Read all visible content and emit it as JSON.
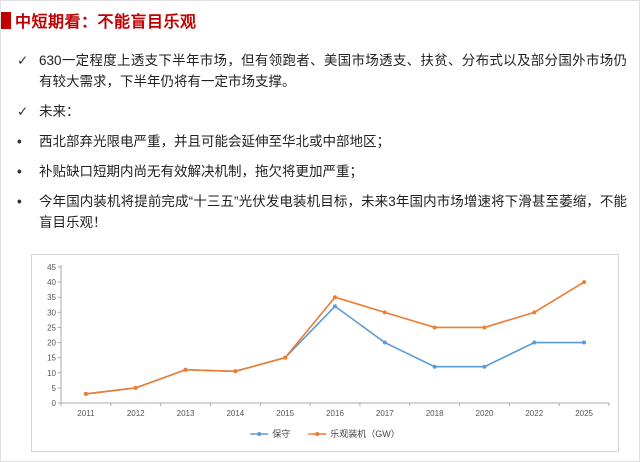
{
  "accent_color": "#c00000",
  "header": {
    "title": "中短期看：不能盲目乐观"
  },
  "bullets": [
    {
      "marker": "✓",
      "text": "630一定程度上透支下半年市场，但有领跑者、美国市场透支、扶贫、分布式以及部分国外市场仍有较大需求，下半年仍将有一定市场支撑。"
    },
    {
      "marker": "✓",
      "text": "未来："
    },
    {
      "marker": "•",
      "text": "西北部弃光限电严重，并且可能会延伸至华北或中部地区；"
    },
    {
      "marker": "•",
      "text": "补贴缺口短期内尚无有效解决机制，拖欠将更加严重；"
    },
    {
      "marker": "•",
      "text": "今年国内装机将提前完成“十三五”光伏发电装机目标，未来3年国内市场增速将下滑甚至萎缩，不能盲目乐观！"
    }
  ],
  "chart_data": {
    "type": "line",
    "categories": [
      "2011",
      "2012",
      "2013",
      "2014",
      "2015",
      "2016",
      "2017",
      "2018",
      "2020",
      "2022",
      "2025"
    ],
    "series": [
      {
        "name": "保守",
        "color": "#5b9bd5",
        "values": [
          3,
          5,
          11,
          10.5,
          15,
          32,
          20,
          12,
          12,
          20,
          20
        ]
      },
      {
        "name": "乐观装机（GW）",
        "color": "#ed7d31",
        "values": [
          3,
          5,
          11,
          10.5,
          15,
          35,
          30,
          25,
          25,
          30,
          40
        ]
      }
    ],
    "title": "",
    "xlabel": "",
    "ylabel": "",
    "ylim": [
      0,
      45
    ],
    "ytick_step": 5,
    "grid": false,
    "legend_position": "bottom"
  }
}
